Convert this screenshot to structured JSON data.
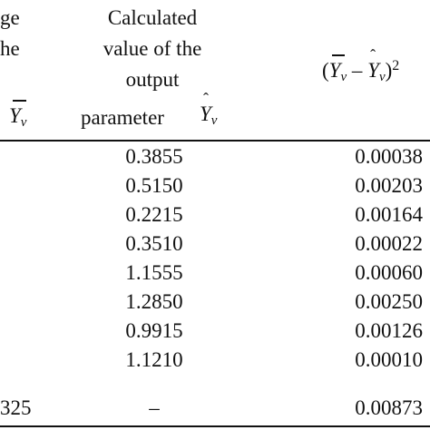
{
  "header": {
    "col1_line1": "ge",
    "col1_line2": "he",
    "col2_line1": "Calculated",
    "col2_line2": "value of the",
    "col2_line3": "output",
    "col2_line4": "parameter",
    "col3_open": "(",
    "col3_minus": "–",
    "col3_close": ")",
    "col3_power": "2",
    "symbol_base": "Y",
    "symbol_sub": "v"
  },
  "rows": [
    {
      "calculated": "0.3855",
      "squared": "0.00038"
    },
    {
      "calculated": "0.5150",
      "squared": "0.00203"
    },
    {
      "calculated": "0.2215",
      "squared": "0.00164"
    },
    {
      "calculated": "0.3510",
      "squared": "0.00022"
    },
    {
      "calculated": "1.1555",
      "squared": "0.00060"
    },
    {
      "calculated": "1.2850",
      "squared": "0.00250"
    },
    {
      "calculated": "0.9915",
      "squared": "0.00126"
    },
    {
      "calculated": "1.1210",
      "squared": "0.00010"
    }
  ],
  "total_row": {
    "col1": "325",
    "calculated": "–",
    "squared": "0.00873"
  }
}
